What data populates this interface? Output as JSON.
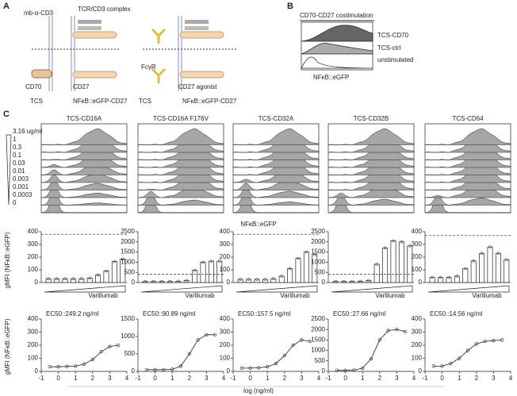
{
  "panel_a": {
    "label": "A",
    "mb_cd3": "mb-α-CD3",
    "tcr": "TCR/CD3 complex",
    "cd70": "CD70",
    "cd27": "CD27",
    "fcgr": "FcγR",
    "agonist": "CD27 agonist",
    "tcs_left": "TCS",
    "reporter_left": "NFκB::eGFP-CD27",
    "tcs_right": "TCS",
    "reporter_right": "NFκB::eGFP-CD27"
  },
  "panel_b": {
    "label": "B",
    "title": "CD70-CD27 costimulation",
    "legend": [
      "TCS-CD70",
      "TCS-ctrl",
      "unstimulated"
    ],
    "x_label": "NFκB::eGFP"
  },
  "panel_c": {
    "label": "C",
    "concentrations": [
      "3.16 ug/ml",
      "1",
      "0.3",
      "0.1",
      "0.03",
      "0.01",
      "0.003",
      "0.001",
      "0.0003",
      "0"
    ],
    "histogram_x_label": "NFκB::eGFP",
    "bar_y_label": "gMFI (NFκB::eGFP)",
    "dose_y_label": "gMFI (NFκB::eGFP)",
    "treatment": "Varlilumab",
    "dose_x_label": "log (ng/ml)",
    "panels": [
      {
        "title": "TCS-CD16A",
        "bars": {
          "type": "bar",
          "ylim": [
            0,
            400
          ],
          "yticks": [
            0,
            100,
            200,
            300,
            400
          ],
          "values": [
            30,
            30,
            30,
            30,
            30,
            35,
            60,
            90,
            165,
            185
          ],
          "threshold": 380
        },
        "dose": {
          "type": "line",
          "x": [
            -0.5,
            0,
            0.5,
            1,
            1.5,
            2,
            2.5,
            3,
            3.5
          ],
          "values": [
            35,
            35,
            38,
            40,
            55,
            90,
            150,
            190,
            200
          ],
          "xlim": [
            -1,
            4
          ],
          "xticks": [
            -1,
            0,
            1,
            2,
            3,
            4
          ],
          "ylim": [
            0,
            400
          ],
          "yticks": [
            0,
            100,
            200,
            300,
            400
          ],
          "annotation": "EC50::249.2 ng/ml"
        }
      },
      {
        "title": "TCS-CD16A F176V",
        "bars": {
          "type": "bar",
          "ylim": [
            0,
            2500
          ],
          "yticks": [
            0,
            500,
            1000,
            1500,
            2000,
            2500
          ],
          "values": [
            50,
            50,
            50,
            50,
            60,
            100,
            600,
            1000,
            1050,
            1050
          ],
          "threshold": 400
        },
        "dose": {
          "type": "line",
          "x": [
            -0.5,
            0,
            0.5,
            1,
            1.5,
            2,
            2.5,
            3,
            3.5
          ],
          "values": [
            50,
            50,
            50,
            60,
            150,
            500,
            900,
            1050,
            1050
          ],
          "xlim": [
            -1,
            4
          ],
          "xticks": [
            -1,
            0,
            1,
            2,
            3,
            4
          ],
          "ylim": [
            0,
            1500
          ],
          "yticks": [
            0,
            500,
            1000,
            1500
          ],
          "annotation": "EC50::90.89 ng/ml"
        }
      },
      {
        "title": "TCS-CD32A",
        "bars": {
          "type": "bar",
          "ylim": [
            0,
            400
          ],
          "yticks": [
            0,
            100,
            200,
            300,
            400
          ],
          "values": [
            25,
            25,
            25,
            25,
            30,
            50,
            110,
            190,
            240,
            220
          ],
          "threshold": 380
        },
        "dose": {
          "type": "line",
          "x": [
            -0.5,
            0,
            0.5,
            1,
            1.5,
            2,
            2.5,
            3,
            3.5
          ],
          "values": [
            25,
            25,
            28,
            35,
            60,
            120,
            200,
            240,
            230
          ],
          "xlim": [
            -1,
            4
          ],
          "xticks": [
            -1,
            0,
            1,
            2,
            3,
            4
          ],
          "ylim": [
            0,
            400
          ],
          "yticks": [
            0,
            100,
            200,
            300,
            400
          ],
          "annotation": "EC50::157.5 ng/ml"
        }
      },
      {
        "title": "TCS-CD32B",
        "bars": {
          "type": "bar",
          "ylim": [
            0,
            2500
          ],
          "yticks": [
            0,
            500,
            1000,
            1500,
            2000,
            2500
          ],
          "values": [
            50,
            50,
            50,
            60,
            100,
            900,
            1700,
            2050,
            2000,
            1800
          ],
          "threshold": 400
        },
        "dose": {
          "type": "line",
          "x": [
            -0.5,
            0,
            0.5,
            1,
            1.5,
            2,
            2.5,
            3,
            3.5
          ],
          "values": [
            50,
            50,
            60,
            150,
            600,
            1500,
            1950,
            2000,
            1900
          ],
          "xlim": [
            -1,
            4
          ],
          "xticks": [
            -1,
            0,
            1,
            2,
            3,
            4
          ],
          "ylim": [
            0,
            2500
          ],
          "yticks": [
            0,
            500,
            1000,
            1500,
            2000,
            2500
          ],
          "annotation": "EC50::27.66 ng/ml"
        }
      },
      {
        "title": "TCS-CD64",
        "bars": {
          "type": "bar",
          "ylim": [
            0,
            400
          ],
          "yticks": [
            0,
            100,
            200,
            300,
            400
          ],
          "values": [
            40,
            40,
            40,
            50,
            110,
            170,
            230,
            280,
            230,
            180
          ],
          "threshold": 370
        },
        "dose": {
          "type": "line",
          "x": [
            -0.5,
            0,
            0.5,
            1,
            1.5,
            2,
            2.5,
            3,
            3.5
          ],
          "values": [
            40,
            40,
            60,
            100,
            160,
            210,
            230,
            235,
            240
          ],
          "xlim": [
            -1,
            4
          ],
          "xticks": [
            -1,
            0,
            1,
            2,
            3,
            4
          ],
          "ylim": [
            0,
            400
          ],
          "yticks": [
            0,
            100,
            200,
            300,
            400
          ],
          "annotation": "EC50::14.56 ng/ml"
        }
      }
    ]
  }
}
